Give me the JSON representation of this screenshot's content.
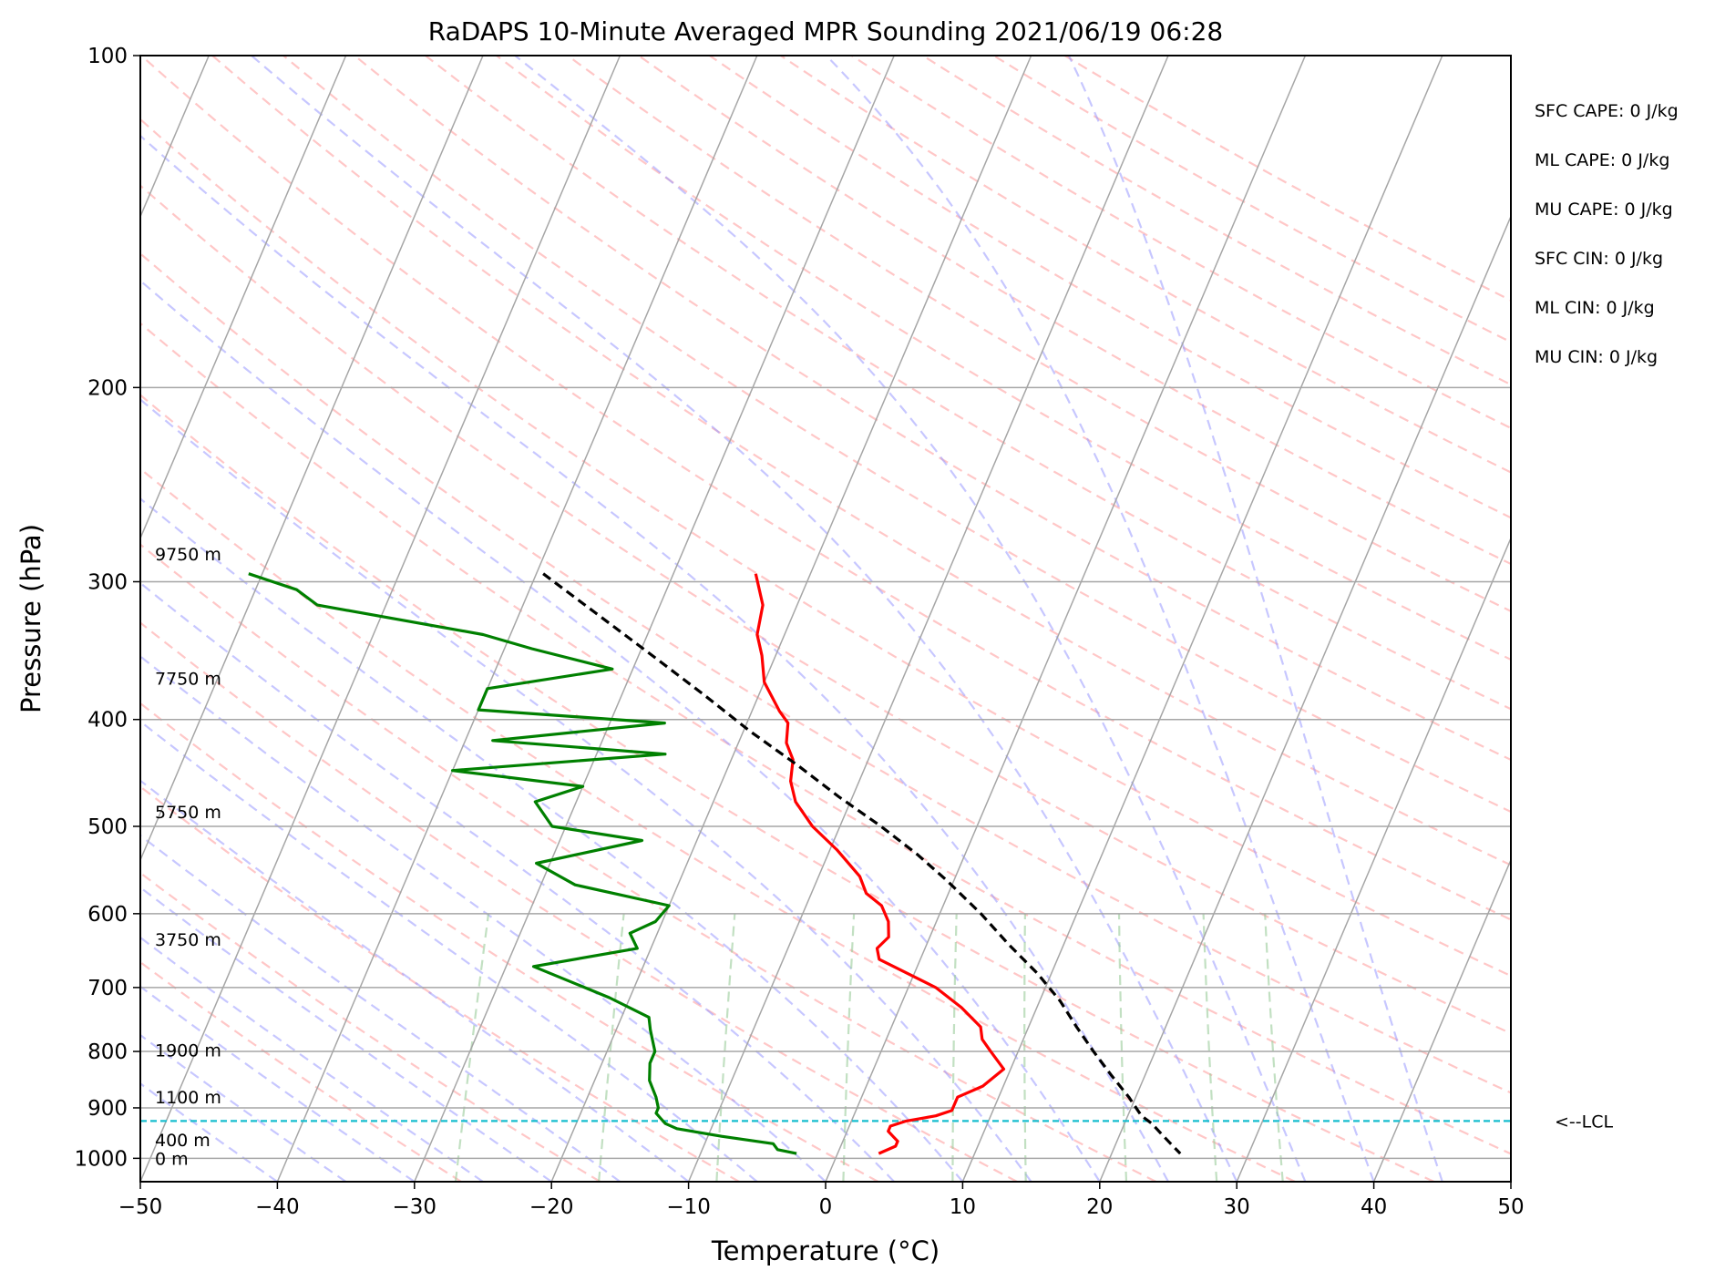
{
  "chart_data": {
    "type": "line",
    "title": "RaDAPS 10-Minute Averaged MPR Sounding 2021/06/19 06:28",
    "xlabel": "Temperature (°C)",
    "ylabel": "Pressure (hPa)",
    "xlim": [
      -50,
      50
    ],
    "ylim": [
      1050,
      100
    ],
    "y_scale": "log",
    "x_ticks": [
      -50,
      -40,
      -30,
      -20,
      -10,
      0,
      10,
      20,
      30,
      40,
      50
    ],
    "x_tick_labels": [
      "−50",
      "−40",
      "−30",
      "−20",
      "−10",
      "0",
      "10",
      "20",
      "30",
      "40",
      "50"
    ],
    "y_ticks": [
      100,
      200,
      300,
      400,
      500,
      600,
      700,
      800,
      900,
      1000
    ],
    "y_tick_labels": [
      "100",
      "200",
      "300",
      "400",
      "500",
      "600",
      "700",
      "800",
      "900",
      "1000"
    ],
    "grid": true,
    "skew": 35,
    "colors": {
      "temperature": "#ff0000",
      "dewpoint": "#008000",
      "parcel": "#000000",
      "lcl": "#17becf",
      "isotherm": "#a6a6a6",
      "dry_adiabat": "#ff9999",
      "moist_adiabat": "#9999ff",
      "mixing_ratio": "#99cc99"
    },
    "series": [
      {
        "key": "temperature",
        "p": [
          295,
          315,
          335,
          350,
          370,
          393,
          403,
          420,
          435,
          455,
          475,
          500,
          525,
          555,
          575,
          590,
          610,
          630,
          645,
          660,
          700,
          730,
          760,
          780,
          800,
          830,
          860,
          880,
          905,
          915,
          925,
          935,
          945,
          955,
          965,
          975,
          990
        ],
        "t": [
          -24.0,
          -22.5,
          -22.0,
          -21.0,
          -20.0,
          -18.0,
          -17.0,
          -16.5,
          -15.5,
          -15.0,
          -14.0,
          -12.0,
          -9.5,
          -7.0,
          -6.0,
          -4.5,
          -3.5,
          -3.0,
          -3.5,
          -3.0,
          2.0,
          4.5,
          6.5,
          7.0,
          8.0,
          9.5,
          8.5,
          7.0,
          7.0,
          6.0,
          4.0,
          3.0,
          3.0,
          3.5,
          4.0,
          4.0,
          3.0
        ]
      },
      {
        "key": "dewpoint",
        "p": [
          295,
          305,
          315,
          335,
          345,
          360,
          375,
          392,
          403,
          418,
          430,
          445,
          460,
          475,
          500,
          515,
          540,
          565,
          590,
          610,
          625,
          645,
          670,
          715,
          745,
          765,
          800,
          820,
          850,
          865,
          880,
          900,
          910,
          920,
          930,
          940,
          955,
          970,
          982,
          990
        ],
        "t": [
          -61.0,
          -57.0,
          -55.0,
          -42.0,
          -38.0,
          -31.5,
          -40.0,
          -40.0,
          -26.0,
          -38.0,
          -25.0,
          -40.0,
          -30.0,
          -33.0,
          -31.0,
          -24.0,
          -31.0,
          -27.5,
          -20.0,
          -20.5,
          -22.0,
          -21.0,
          -28.0,
          -21.5,
          -18.0,
          -17.5,
          -16.5,
          -16.5,
          -16.0,
          -15.5,
          -15.0,
          -14.5,
          -14.5,
          -14.0,
          -13.5,
          -12.5,
          -9.0,
          -5.0,
          -4.5,
          -3.0
        ]
      },
      {
        "key": "parcel",
        "p": [
          295,
          320,
          350,
          380,
          410,
          440,
          470,
          500,
          530,
          560,
          600,
          640,
          680,
          720,
          760,
          800,
          840,
          880,
          915,
          930,
          950,
          970,
          990
        ],
        "t": [
          -39.5,
          -34.5,
          -29.0,
          -24.0,
          -19.5,
          -15.0,
          -11.0,
          -7.0,
          -3.5,
          -0.5,
          3.0,
          6.0,
          9.0,
          11.5,
          13.5,
          15.5,
          17.5,
          19.5,
          21.0,
          22.0,
          23.0,
          24.0,
          25.0
        ]
      }
    ],
    "lcl_pressure": 925,
    "lcl_label": "<--LCL",
    "height_labels": [
      {
        "p": 283,
        "text": "9750 m"
      },
      {
        "p": 367,
        "text": "7750 m"
      },
      {
        "p": 485,
        "text": "5750 m"
      },
      {
        "p": 633,
        "text": "3750 m"
      },
      {
        "p": 798,
        "text": "1900 m"
      },
      {
        "p": 880,
        "text": "1100 m"
      },
      {
        "p": 962,
        "text": "400 m"
      },
      {
        "p": 1000,
        "text": "0 m"
      }
    ],
    "annotations": [
      "SFC CAPE: 0 J/kg",
      "ML CAPE: 0 J/kg",
      "MU CAPE: 0 J/kg",
      "SFC CIN: 0 J/kg",
      "ML CIN: 0 J/kg",
      "MU CIN: 0 J/kg"
    ]
  }
}
